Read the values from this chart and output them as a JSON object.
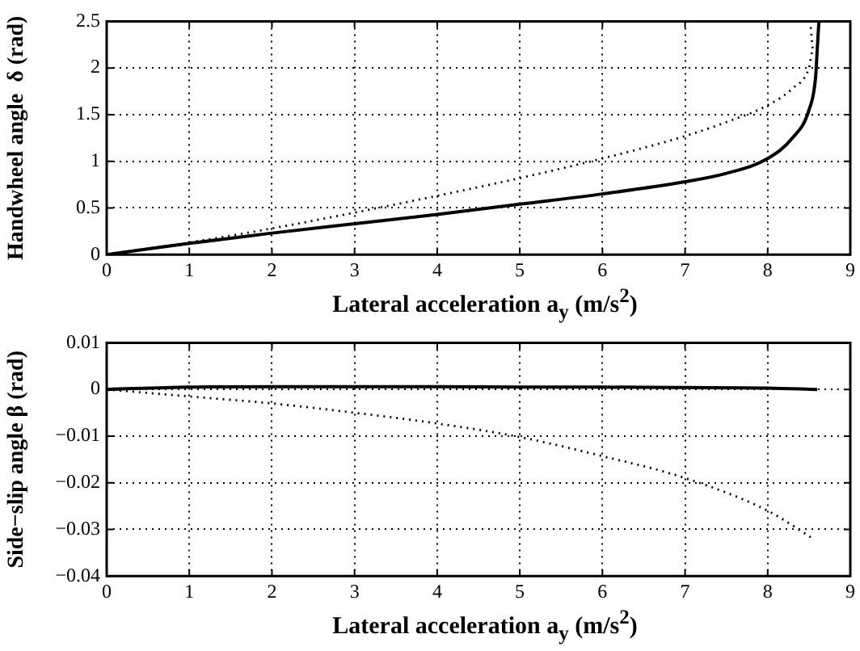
{
  "chart_data": [
    {
      "type": "line",
      "xlabel": "Lateral acceleration a$_{y}$ (m/s$^{2}$)",
      "ylabel": "Handwheel angle  δ (rad)",
      "xlim": [
        0,
        9
      ],
      "xticks": [
        0,
        1,
        2,
        3,
        4,
        5,
        6,
        7,
        8,
        9
      ],
      "ylim": [
        0,
        2.5
      ],
      "yticks": [
        0,
        0.5,
        1,
        1.5,
        2,
        2.5
      ],
      "grid": true,
      "marker": "none",
      "series": [
        {
          "color": "#000000",
          "line_style": "solid",
          "x": [
            0,
            1,
            2,
            3,
            4,
            5,
            6,
            7,
            7.5,
            8,
            8.3,
            8.5,
            8.58,
            8.6,
            8.62
          ],
          "values": [
            0,
            0.12,
            0.23,
            0.33,
            0.43,
            0.54,
            0.65,
            0.78,
            0.87,
            1.03,
            1.25,
            1.55,
            1.9,
            2.2,
            2.5
          ]
        },
        {
          "color": "#000000",
          "line_style": "dotted",
          "x": [
            0,
            1,
            2,
            3,
            4,
            5,
            6,
            7,
            7.5,
            8,
            8.3,
            8.5,
            8.55,
            8.52
          ],
          "values": [
            0,
            0.13,
            0.28,
            0.45,
            0.63,
            0.82,
            1.03,
            1.27,
            1.42,
            1.6,
            1.78,
            2.0,
            2.2,
            2.45
          ]
        }
      ]
    },
    {
      "type": "line",
      "xlabel": "Lateral acceleration a$_{y}$ (m/s$^{2}$)",
      "ylabel": "Side−slip angle β (rad)",
      "xlim": [
        0,
        9
      ],
      "xticks": [
        0,
        1,
        2,
        3,
        4,
        5,
        6,
        7,
        8,
        9
      ],
      "ylim": [
        -0.04,
        0.01
      ],
      "yticks": [
        {
          "value": -0.04,
          "label": "−0.04"
        },
        {
          "value": -0.03,
          "label": "−0.03"
        },
        {
          "value": -0.02,
          "label": "−0.02"
        },
        {
          "value": -0.01,
          "label": "−0.01"
        },
        0,
        0.01
      ],
      "grid": true,
      "marker": "none",
      "series": [
        {
          "color": "#000000",
          "line_style": "solid",
          "x": [
            0,
            1,
            2,
            3,
            4,
            5,
            6,
            7,
            8,
            8.6
          ],
          "values": [
            0,
            0.0005,
            0.0006,
            0.0006,
            0.0006,
            0.0005,
            0.0005,
            0.0004,
            0.0003,
            0
          ]
        },
        {
          "color": "#000000",
          "line_style": "dotted",
          "x": [
            0,
            1,
            2,
            3,
            4,
            5,
            6,
            7,
            8,
            8.55
          ],
          "values": [
            0,
            -0.0015,
            -0.003,
            -0.005,
            -0.0073,
            -0.0102,
            -0.0143,
            -0.019,
            -0.026,
            -0.032
          ]
        }
      ]
    }
  ]
}
